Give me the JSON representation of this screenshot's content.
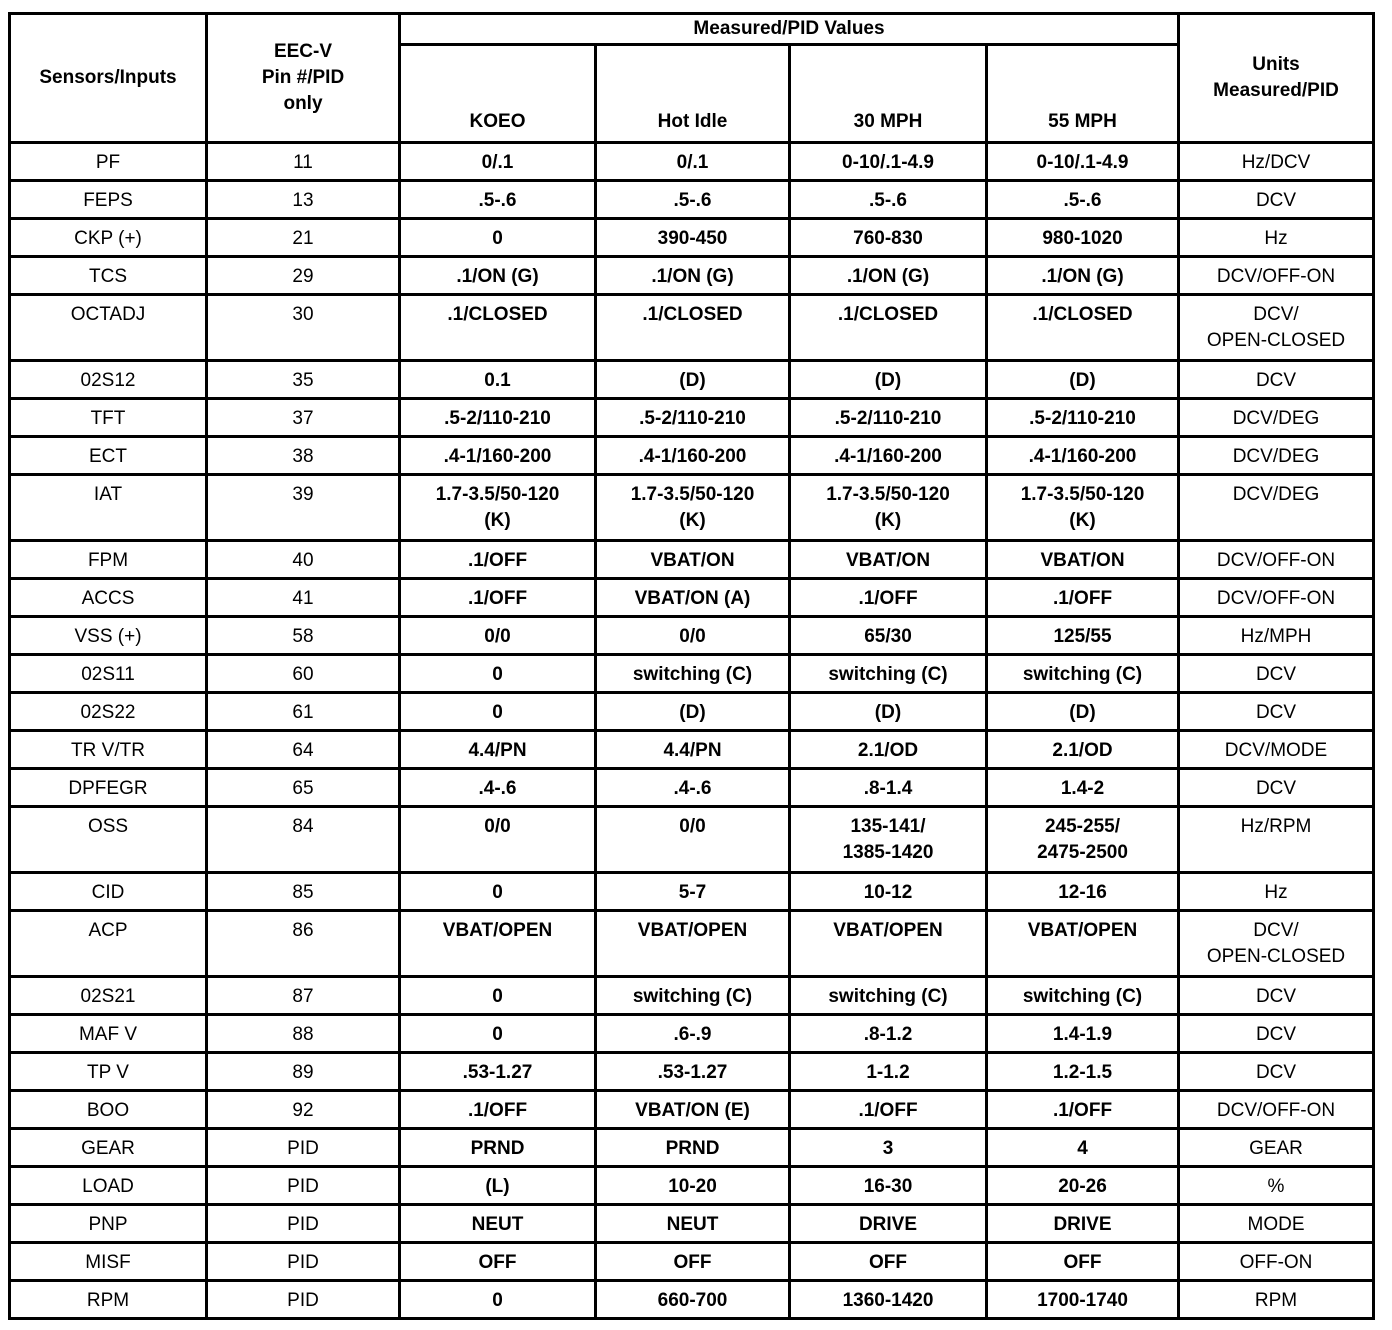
{
  "headers": {
    "sensors": "Sensors/Inputs",
    "pin": [
      "EEC-V",
      "Pin #/PID",
      "only"
    ],
    "group": "Measured/PID Values",
    "koeo": "KOEO",
    "hot_idle": "Hot Idle",
    "mph30": "30 MPH",
    "mph55": "55 MPH",
    "units": [
      "Units",
      "Measured/PID"
    ]
  },
  "rows": [
    {
      "sensor": "PF",
      "pin": "11",
      "koeo": "0/.1",
      "idle": "0/.1",
      "mph30": "0-10/.1-4.9",
      "mph55": "0-10/.1-4.9",
      "units": "Hz/DCV"
    },
    {
      "sensor": "FEPS",
      "pin": "13",
      "koeo": ".5-.6",
      "idle": ".5-.6",
      "mph30": ".5-.6",
      "mph55": ".5-.6",
      "units": "DCV"
    },
    {
      "sensor": "CKP (+)",
      "pin": "21",
      "koeo": "0",
      "idle": "390-450",
      "mph30": "760-830",
      "mph55": "980-1020",
      "units": "Hz"
    },
    {
      "sensor": "TCS",
      "pin": "29",
      "koeo": ".1/ON (G)",
      "idle": ".1/ON (G)",
      "mph30": ".1/ON (G)",
      "mph55": ".1/ON (G)",
      "units": "DCV/OFF-ON"
    },
    {
      "sensor": "OCTADJ",
      "pin": "30",
      "koeo": ".1/CLOSED",
      "idle": ".1/CLOSED",
      "mph30": ".1/CLOSED",
      "mph55": ".1/CLOSED",
      "units": "DCV/\nOPEN-CLOSED",
      "tall": true
    },
    {
      "sensor": "02S12",
      "pin": "35",
      "koeo": "0.1",
      "idle": "(D)",
      "mph30": "(D)",
      "mph55": "(D)",
      "units": "DCV"
    },
    {
      "sensor": "TFT",
      "pin": "37",
      "koeo": ".5-2/110-210",
      "idle": ".5-2/110-210",
      "mph30": ".5-2/110-210",
      "mph55": ".5-2/110-210",
      "units": "DCV/DEG"
    },
    {
      "sensor": "ECT",
      "pin": "38",
      "koeo": ".4-1/160-200",
      "idle": ".4-1/160-200",
      "mph30": ".4-1/160-200",
      "mph55": ".4-1/160-200",
      "units": "DCV/DEG"
    },
    {
      "sensor": "IAT",
      "pin": "39",
      "koeo": "1.7-3.5/50-120\n(K)",
      "idle": "1.7-3.5/50-120\n(K)",
      "mph30": "1.7-3.5/50-120\n(K)",
      "mph55": "1.7-3.5/50-120\n(K)",
      "units": "DCV/DEG",
      "tall": true
    },
    {
      "sensor": "FPM",
      "pin": "40",
      "koeo": ".1/OFF",
      "idle": "VBAT/ON",
      "mph30": "VBAT/ON",
      "mph55": "VBAT/ON",
      "units": "DCV/OFF-ON"
    },
    {
      "sensor": "ACCS",
      "pin": "41",
      "koeo": ".1/OFF",
      "idle": "VBAT/ON (A)",
      "mph30": ".1/OFF",
      "mph55": ".1/OFF",
      "units": "DCV/OFF-ON"
    },
    {
      "sensor": "VSS (+)",
      "pin": "58",
      "koeo": "0/0",
      "idle": "0/0",
      "mph30": "65/30",
      "mph55": "125/55",
      "units": "Hz/MPH"
    },
    {
      "sensor": "02S11",
      "pin": "60",
      "koeo": "0",
      "idle": "switching (C)",
      "mph30": "switching (C)",
      "mph55": "switching (C)",
      "units": "DCV"
    },
    {
      "sensor": "02S22",
      "pin": "61",
      "koeo": "0",
      "idle": "(D)",
      "mph30": "(D)",
      "mph55": "(D)",
      "units": "DCV"
    },
    {
      "sensor": "TR V/TR",
      "pin": "64",
      "koeo": "4.4/PN",
      "idle": "4.4/PN",
      "mph30": "2.1/OD",
      "mph55": "2.1/OD",
      "units": "DCV/MODE"
    },
    {
      "sensor": "DPFEGR",
      "pin": "65",
      "koeo": ".4-.6",
      "idle": ".4-.6",
      "mph30": ".8-1.4",
      "mph55": "1.4-2",
      "units": "DCV"
    },
    {
      "sensor": "OSS",
      "pin": "84",
      "koeo": "0/0",
      "idle": "0/0",
      "mph30": "135-141/\n1385-1420",
      "mph55": "245-255/\n2475-2500",
      "units": "Hz/RPM",
      "tall": true
    },
    {
      "sensor": "CID",
      "pin": "85",
      "koeo": "0",
      "idle": "5-7",
      "mph30": "10-12",
      "mph55": "12-16",
      "units": "Hz"
    },
    {
      "sensor": "ACP",
      "pin": "86",
      "koeo": "VBAT/OPEN",
      "idle": "VBAT/OPEN",
      "mph30": "VBAT/OPEN",
      "mph55": "VBAT/OPEN",
      "units": "DCV/\nOPEN-CLOSED",
      "tall": true
    },
    {
      "sensor": "02S21",
      "pin": "87",
      "koeo": "0",
      "idle": "switching (C)",
      "mph30": "switching (C)",
      "mph55": "switching (C)",
      "units": "DCV"
    },
    {
      "sensor": "MAF V",
      "pin": "88",
      "koeo": "0",
      "idle": ".6-.9",
      "mph30": ".8-1.2",
      "mph55": "1.4-1.9",
      "units": "DCV"
    },
    {
      "sensor": "TP V",
      "pin": "89",
      "koeo": ".53-1.27",
      "idle": ".53-1.27",
      "mph30": "1-1.2",
      "mph55": "1.2-1.5",
      "units": "DCV"
    },
    {
      "sensor": "BOO",
      "pin": "92",
      "koeo": ".1/OFF",
      "idle": "VBAT/ON (E)",
      "mph30": ".1/OFF",
      "mph55": ".1/OFF",
      "units": "DCV/OFF-ON"
    },
    {
      "sensor": "GEAR",
      "pin": "PID",
      "koeo": "PRND",
      "idle": "PRND",
      "mph30": "3",
      "mph55": "4",
      "units": "GEAR"
    },
    {
      "sensor": "LOAD",
      "pin": "PID",
      "koeo": "(L)",
      "idle": "10-20",
      "mph30": "16-30",
      "mph55": "20-26",
      "units": "%"
    },
    {
      "sensor": "PNP",
      "pin": "PID",
      "koeo": "NEUT",
      "idle": "NEUT",
      "mph30": "DRIVE",
      "mph55": "DRIVE",
      "units": "MODE"
    },
    {
      "sensor": "MISF",
      "pin": "PID",
      "koeo": "OFF",
      "idle": "OFF",
      "mph30": "OFF",
      "mph55": "OFF",
      "units": "OFF-ON"
    },
    {
      "sensor": "RPM",
      "pin": "PID",
      "koeo": "0",
      "idle": "660-700",
      "mph30": "1360-1420",
      "mph55": "1700-1740",
      "units": "RPM"
    }
  ]
}
